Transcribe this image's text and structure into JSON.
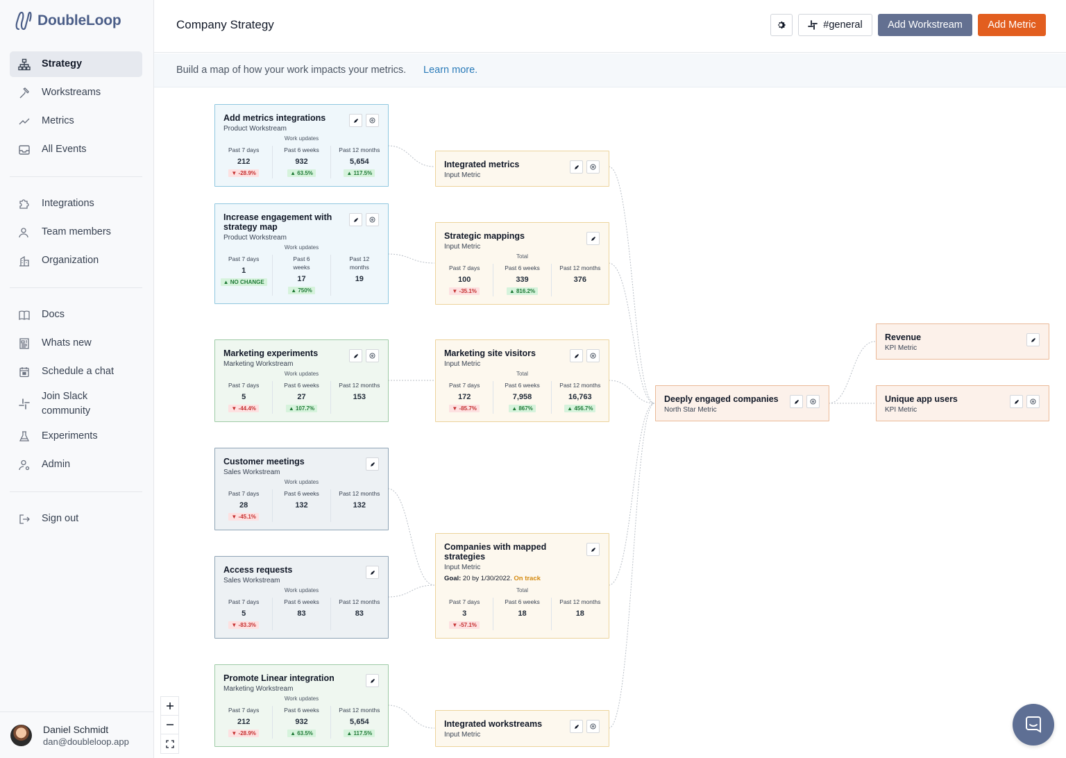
{
  "app": {
    "name": "DoubleLoop"
  },
  "sidebar": {
    "primary": [
      {
        "label": "Strategy",
        "icon": "sitemap-icon",
        "active": true
      },
      {
        "label": "Workstreams",
        "icon": "hammer-icon"
      },
      {
        "label": "Metrics",
        "icon": "trend-icon"
      },
      {
        "label": "All Events",
        "icon": "inbox-icon"
      }
    ],
    "secondary": [
      {
        "label": "Integrations",
        "icon": "puzzle-icon"
      },
      {
        "label": "Team members",
        "icon": "users-icon"
      },
      {
        "label": "Organization",
        "icon": "building-icon"
      }
    ],
    "tertiary": [
      {
        "label": "Docs",
        "icon": "book-icon"
      },
      {
        "label": "Whats new",
        "icon": "newspaper-icon"
      },
      {
        "label": "Schedule a chat",
        "icon": "calendar-icon"
      },
      {
        "label": "Join Slack community",
        "icon": "slack-icon"
      },
      {
        "label": "Experiments",
        "icon": "flask-icon"
      },
      {
        "label": "Admin",
        "icon": "user-cog-icon"
      }
    ],
    "signout": {
      "label": "Sign out",
      "icon": "sign-out-icon"
    }
  },
  "user": {
    "name": "Daniel Schmidt",
    "email": "dan@doubleloop.app"
  },
  "header": {
    "title": "Company Strategy",
    "slack_channel": "#general",
    "add_workstream": "Add Workstream",
    "add_metric": "Add Metric"
  },
  "banner": {
    "text": "Build a map of how your work impacts your metrics.",
    "link": "Learn more."
  },
  "cards": {
    "w1": {
      "title": "Add metrics integrations",
      "type": "Product Workstream",
      "section": "Work updates",
      "stats": [
        {
          "label": "Past 7 days",
          "value": "212",
          "badge": "-28.9%",
          "dir": "dn"
        },
        {
          "label": "Past 6 weeks",
          "value": "932",
          "badge": "63.5%",
          "dir": "up"
        },
        {
          "label": "Past 12 months",
          "value": "5,654",
          "badge": "117.5%",
          "dir": "up"
        }
      ]
    },
    "w2": {
      "title": "Increase engagement with strategy map",
      "type": "Product Workstream",
      "section": "Work updates",
      "stats": [
        {
          "label": "Past 7 days",
          "value": "1",
          "badge": "NO CHANGE",
          "dir": "nc"
        },
        {
          "label": "Past 6 weeks",
          "value": "17",
          "badge": "750%",
          "dir": "up"
        },
        {
          "label": "Past 12 months",
          "value": "19",
          "badge": "",
          "dir": ""
        }
      ]
    },
    "w3": {
      "title": "Marketing experiments",
      "type": "Marketing Workstream",
      "section": "Work updates",
      "stats": [
        {
          "label": "Past 7 days",
          "value": "5",
          "badge": "-44.4%",
          "dir": "dn"
        },
        {
          "label": "Past 6 weeks",
          "value": "27",
          "badge": "107.7%",
          "dir": "up"
        },
        {
          "label": "Past 12 months",
          "value": "153",
          "badge": "",
          "dir": ""
        }
      ]
    },
    "w4": {
      "title": "Customer meetings",
      "type": "Sales Workstream",
      "section": "Work updates",
      "stats": [
        {
          "label": "Past 7 days",
          "value": "28",
          "badge": "-45.1%",
          "dir": "dn"
        },
        {
          "label": "Past 6 weeks",
          "value": "132",
          "badge": "",
          "dir": ""
        },
        {
          "label": "Past 12 months",
          "value": "132",
          "badge": "",
          "dir": ""
        }
      ]
    },
    "w5": {
      "title": "Access requests",
      "type": "Sales Workstream",
      "section": "Work updates",
      "stats": [
        {
          "label": "Past 7 days",
          "value": "5",
          "badge": "-83.3%",
          "dir": "dn"
        },
        {
          "label": "Past 6 weeks",
          "value": "83",
          "badge": "",
          "dir": ""
        },
        {
          "label": "Past 12 months",
          "value": "83",
          "badge": "",
          "dir": ""
        }
      ]
    },
    "w6": {
      "title": "Promote Linear integration",
      "type": "Marketing Workstream",
      "section": "Work updates",
      "stats": [
        {
          "label": "Past 7 days",
          "value": "212",
          "badge": "-28.9%",
          "dir": "dn"
        },
        {
          "label": "Past 6 weeks",
          "value": "932",
          "badge": "63.5%",
          "dir": "up"
        },
        {
          "label": "Past 12 months",
          "value": "5,654",
          "badge": "117.5%",
          "dir": "up"
        }
      ]
    },
    "m1": {
      "title": "Integrated metrics",
      "type": "Input Metric"
    },
    "m2": {
      "title": "Strategic mappings",
      "type": "Input Metric",
      "section": "Total",
      "stats": [
        {
          "label": "Past 7 days",
          "value": "100",
          "badge": "-35.1%",
          "dir": "dn"
        },
        {
          "label": "Past 6 weeks",
          "value": "339",
          "badge": "816.2%",
          "dir": "up"
        },
        {
          "label": "Past 12 months",
          "value": "376",
          "badge": "",
          "dir": ""
        }
      ]
    },
    "m3": {
      "title": "Marketing site visitors",
      "type": "Input Metric",
      "section": "Total",
      "stats": [
        {
          "label": "Past 7 days",
          "value": "172",
          "badge": "-85.7%",
          "dir": "dn"
        },
        {
          "label": "Past 6 weeks",
          "value": "7,958",
          "badge": "867%",
          "dir": "up"
        },
        {
          "label": "Past 12 months",
          "value": "16,763",
          "badge": "456.7%",
          "dir": "up"
        }
      ]
    },
    "m4": {
      "title": "Companies with mapped strategies",
      "type": "Input Metric",
      "goal_label": "Goal:",
      "goal_text": "20 by 1/30/2022.",
      "goal_status": "On track",
      "section": "Total",
      "stats": [
        {
          "label": "Past 7 days",
          "value": "3",
          "badge": "-57.1%",
          "dir": "dn"
        },
        {
          "label": "Past 6 weeks",
          "value": "18",
          "badge": "",
          "dir": ""
        },
        {
          "label": "Past 12 months",
          "value": "18",
          "badge": "",
          "dir": ""
        }
      ]
    },
    "m5": {
      "title": "Integrated workstreams",
      "type": "Input Metric"
    },
    "ns": {
      "title": "Deeply engaged companies",
      "type": "North Star Metric"
    },
    "k1": {
      "title": "Revenue",
      "type": "KPI Metric"
    },
    "k2": {
      "title": "Unique app users",
      "type": "KPI Metric"
    }
  },
  "colors": {
    "accent": "#e25e1f",
    "workstream_button": "#637091",
    "link": "#2b7bb9"
  }
}
